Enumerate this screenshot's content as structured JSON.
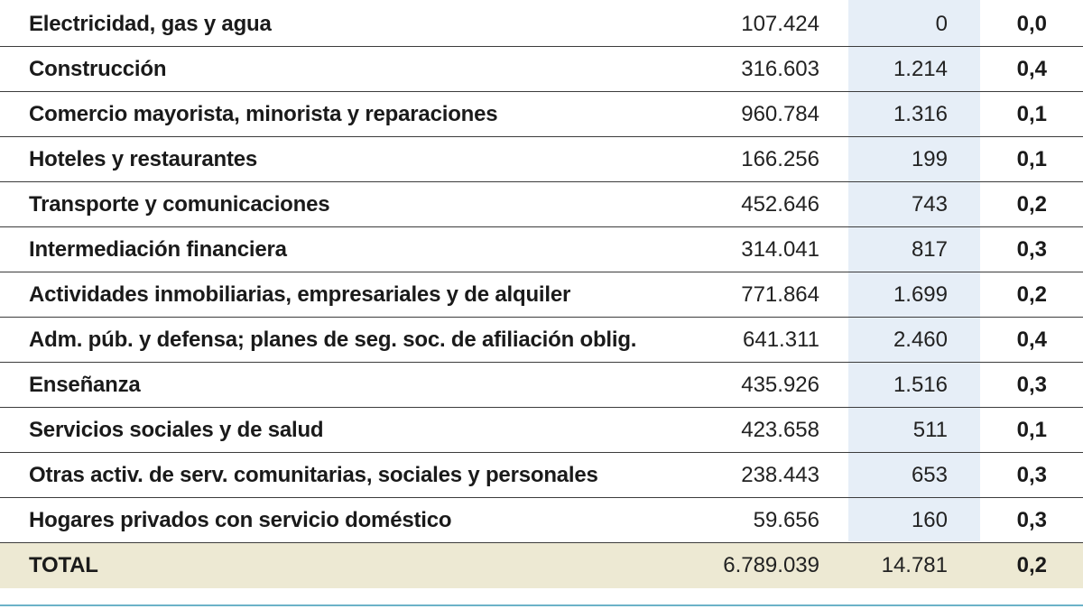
{
  "chart_data": {
    "type": "table",
    "rows": [
      {
        "sector": "Electricidad, gas y agua",
        "workers": "107.424",
        "affected": "0",
        "pct": "0,0"
      },
      {
        "sector": "Construcción",
        "workers": "316.603",
        "affected": "1.214",
        "pct": "0,4"
      },
      {
        "sector": "Comercio mayorista, minorista  y reparaciones",
        "workers": "960.784",
        "affected": "1.316",
        "pct": "0,1"
      },
      {
        "sector": "Hoteles y restaurantes",
        "workers": "166.256",
        "affected": "199",
        "pct": "0,1"
      },
      {
        "sector": "Transporte y comunicaciones",
        "workers": "452.646",
        "affected": "743",
        "pct": "0,2"
      },
      {
        "sector": "Intermediación financiera",
        "workers": "314.041",
        "affected": "817",
        "pct": "0,3"
      },
      {
        "sector": "Actividades inmobiliarias, empresariales y de alquiler",
        "workers": "771.864",
        "affected": "1.699",
        "pct": "0,2"
      },
      {
        "sector": "Adm. púb. y defensa; planes de seg. soc. de afiliación oblig.",
        "workers": "641.311",
        "affected": "2.460",
        "pct": "0,4"
      },
      {
        "sector": "Enseñanza",
        "workers": "435.926",
        "affected": "1.516",
        "pct": "0,3"
      },
      {
        "sector": "Servicios sociales y de salud",
        "workers": "423.658",
        "affected": "511",
        "pct": "0,1"
      },
      {
        "sector": "Otras activ. de serv. comunitarias, sociales y personales",
        "workers": "238.443",
        "affected": "653",
        "pct": "0,3"
      },
      {
        "sector": "Hogares privados con servicio doméstico",
        "workers": "59.656",
        "affected": "160",
        "pct": "0,3"
      }
    ],
    "total": {
      "sector": "TOTAL",
      "workers": "6.789.039",
      "affected": "14.781",
      "pct": "0,2"
    },
    "colors": {
      "highlight_column": "#e6eef7",
      "total_row": "#ede9d3",
      "bottom_rule": "#6bb2c8",
      "row_rule": "#3c3c3c"
    }
  }
}
